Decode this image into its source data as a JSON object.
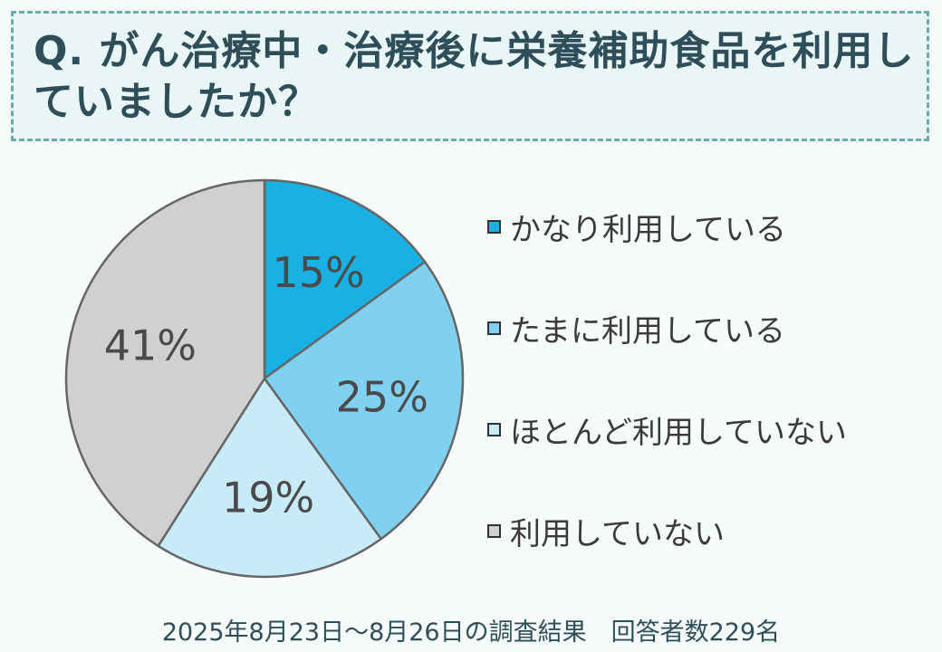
{
  "title": "Q. がん治療中・治療後に栄養補助食品を利用していましたか？",
  "footer": "2025年8月23日～8月26日の調査結果　回答者数229名",
  "chart_data": {
    "type": "pie",
    "title": "Q. がん治療中・治療後に栄養補助食品を利用していましたか？",
    "slices": [
      {
        "label": "かなり利用している",
        "value": 15,
        "display": "15%",
        "color": "#19b0e4"
      },
      {
        "label": "たまに利用している",
        "value": 25,
        "display": "25%",
        "color": "#80d0f0"
      },
      {
        "label": "ほとんど利用していない",
        "value": 19,
        "display": "19%",
        "color": "#c8ebf8"
      },
      {
        "label": "利用していない",
        "value": 41,
        "display": "41%",
        "color": "#d0d0d0"
      }
    ],
    "legend_position": "right",
    "start": "top",
    "direction": "clockwise"
  }
}
